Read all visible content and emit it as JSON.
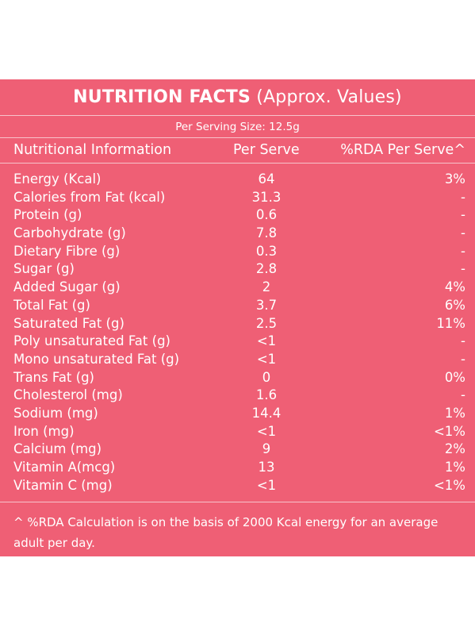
{
  "title": {
    "bold": "NUTRITION FACTS",
    "normal": " (Approx. Values)"
  },
  "serving": "Per Serving Size: 12.5g",
  "headers": {
    "info": "Nutritional Information",
    "serve": "Per Serve",
    "rda": "%RDA Per Serve^"
  },
  "rows": [
    {
      "name": "Energy (Kcal)",
      "serve": "64",
      "rda": "3%"
    },
    {
      "name": "Calories from Fat (kcal)",
      "serve": "31.3",
      "rda": "-"
    },
    {
      "name": "Protein (g)",
      "serve": "0.6",
      "rda": "-"
    },
    {
      "name": "Carbohydrate (g)",
      "serve": "7.8",
      "rda": "-"
    },
    {
      "name": "Dietary Fibre (g)",
      "serve": "0.3",
      "rda": "-"
    },
    {
      "name": "Sugar (g)",
      "serve": "2.8",
      "rda": "-"
    },
    {
      "name": "Added Sugar (g)",
      "serve": "2",
      "rda": "4%"
    },
    {
      "name": "Total Fat (g)",
      "serve": "3.7",
      "rda": "6%"
    },
    {
      "name": "Saturated Fat (g)",
      "serve": "2.5",
      "rda": "11%"
    },
    {
      "name": "Poly unsaturated Fat (g)",
      "serve": "<1",
      "rda": "-"
    },
    {
      "name": "Mono unsaturated Fat (g)",
      "serve": "<1",
      "rda": "-"
    },
    {
      "name": "Trans Fat (g)",
      "serve": "0",
      "rda": "0%"
    },
    {
      "name": "Cholesterol (mg)",
      "serve": "1.6",
      "rda": "-"
    },
    {
      "name": "Sodium (mg)",
      "serve": "14.4",
      "rda": "1%"
    },
    {
      "name": "Iron (mg)",
      "serve": "<1",
      "rda": "<1%"
    },
    {
      "name": "Calcium (mg)",
      "serve": "9",
      "rda": "2%"
    },
    {
      "name": "Vitamin A(mcg)",
      "serve": "13",
      "rda": "1%"
    },
    {
      "name": "Vitamin C (mg)",
      "serve": "<1",
      "rda": "<1%"
    }
  ],
  "footnote": "^ %RDA Calculation is on the basis of 2000 Kcal energy for an average adult per day."
}
